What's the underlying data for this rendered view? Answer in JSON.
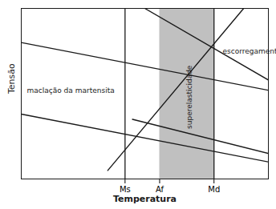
{
  "chart_data": {
    "type": "line",
    "xlabel": "Temperatura",
    "ylabel": "Tensão",
    "color": "#1a1a1a",
    "xlim": [
      0,
      10
    ],
    "ylim": [
      0,
      10
    ],
    "xticks": [
      {
        "value": 4.2,
        "label": "Ms"
      },
      {
        "value": 5.6,
        "label": "Af"
      },
      {
        "value": 7.8,
        "label": "Md"
      }
    ],
    "yticks": [],
    "tick_labels": "x",
    "grid": false,
    "shaded_span": {
      "x": [
        5.6,
        7.8
      ],
      "color": "#c0c0c0"
    },
    "vertical_lines": [
      4.2,
      7.8
    ],
    "series": [
      {
        "x": [
          0,
          10
        ],
        "values": [
          8.0,
          5.2
        ]
      },
      {
        "x": [
          0,
          10
        ],
        "values": [
          3.8,
          1.0
        ]
      },
      {
        "x": [
          3.5,
          9.0
        ],
        "values": [
          0.5,
          10.0
        ]
      },
      {
        "x": [
          5.0,
          10
        ],
        "values": [
          10.0,
          5.8
        ]
      },
      {
        "x": [
          4.5,
          10
        ],
        "values": [
          3.5,
          1.5
        ]
      }
    ],
    "annotations": [
      {
        "text": "maclação da martensita",
        "x": 2.0,
        "y": 5.2
      },
      {
        "text": "superelasticidade",
        "x": 6.8,
        "y": 4.8
      },
      {
        "text": "escorregamento",
        "x": 8.15,
        "y": 7.5
      }
    ]
  }
}
